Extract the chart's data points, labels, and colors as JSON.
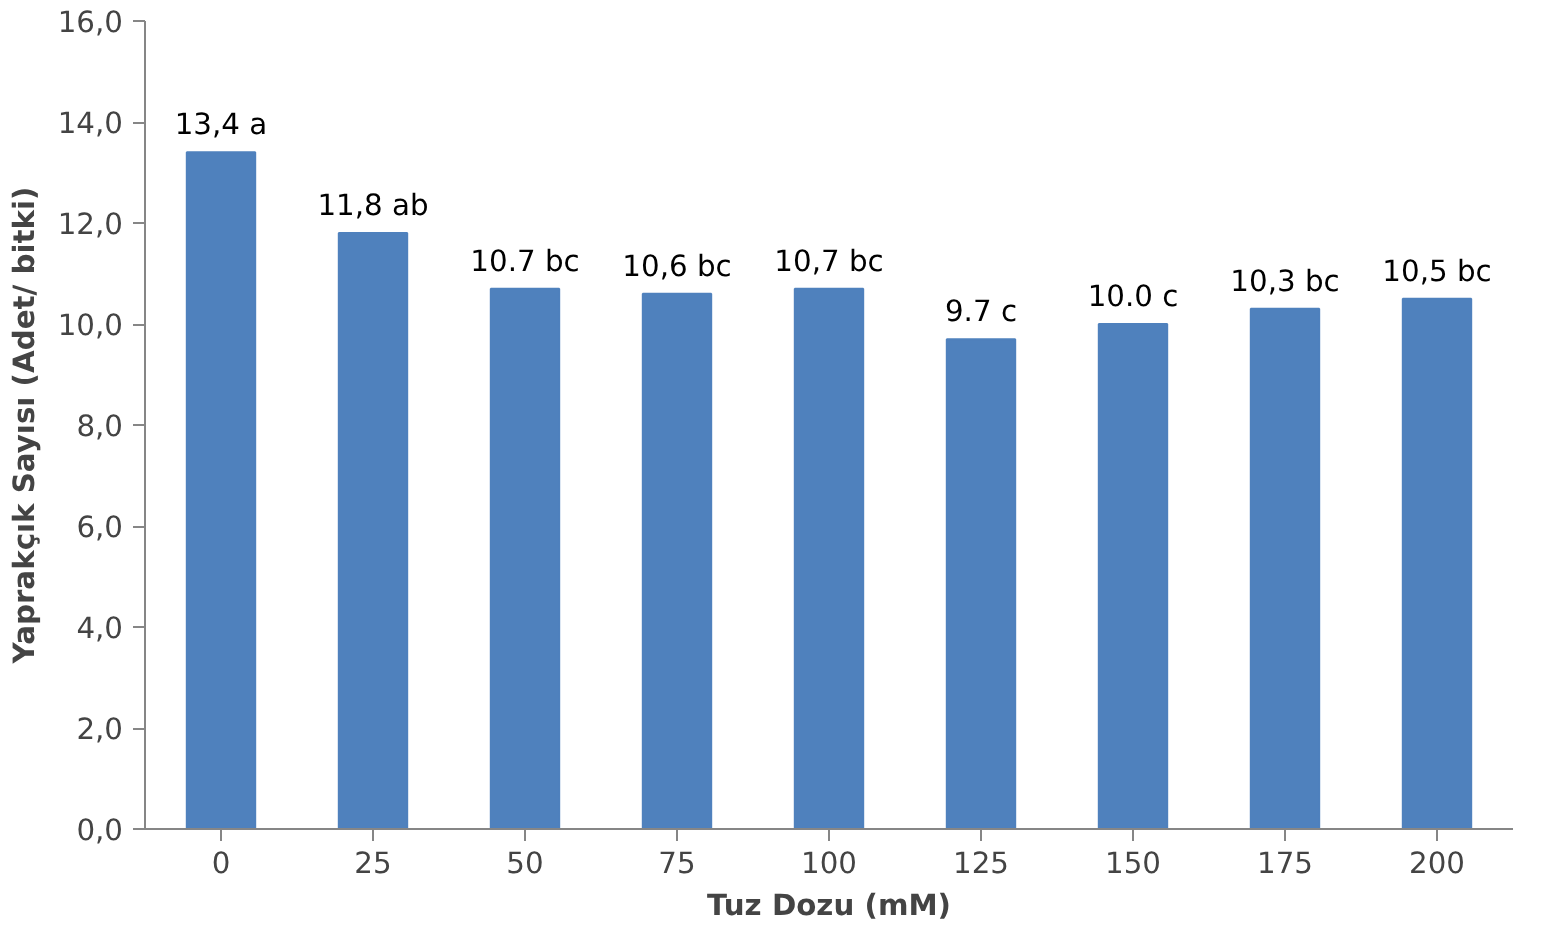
{
  "chart_data": {
    "type": "bar",
    "xlabel": "Tuz Dozu (mM)",
    "ylabel": "Yaprakçık Sayısı (Adet/ bitki)",
    "categories": [
      "0",
      "25",
      "50",
      "75",
      "100",
      "125",
      "150",
      "175",
      "200"
    ],
    "values": [
      13.4,
      11.8,
      10.7,
      10.6,
      10.7,
      9.7,
      10.0,
      10.3,
      10.5
    ],
    "value_labels": [
      "13,4 a",
      "11,8 ab",
      "10.7 bc",
      "10,6 bc",
      "10,7 bc",
      "9.7 c",
      "10.0 c",
      "10,3 bc",
      "10,5 bc"
    ],
    "color": "#4f81bd",
    "ylim": [
      0,
      16
    ],
    "yticks": [
      {
        "value": 0,
        "label": "0,0"
      },
      {
        "value": 2,
        "label": "2,0"
      },
      {
        "value": 4,
        "label": "4,0"
      },
      {
        "value": 6,
        "label": "6,0"
      },
      {
        "value": 8,
        "label": "8,0"
      },
      {
        "value": 10,
        "label": "10,0"
      },
      {
        "value": 12,
        "label": "12,0"
      },
      {
        "value": 14,
        "label": "14,0"
      },
      {
        "value": 16,
        "label": "16,0"
      }
    ],
    "grid": false
  }
}
